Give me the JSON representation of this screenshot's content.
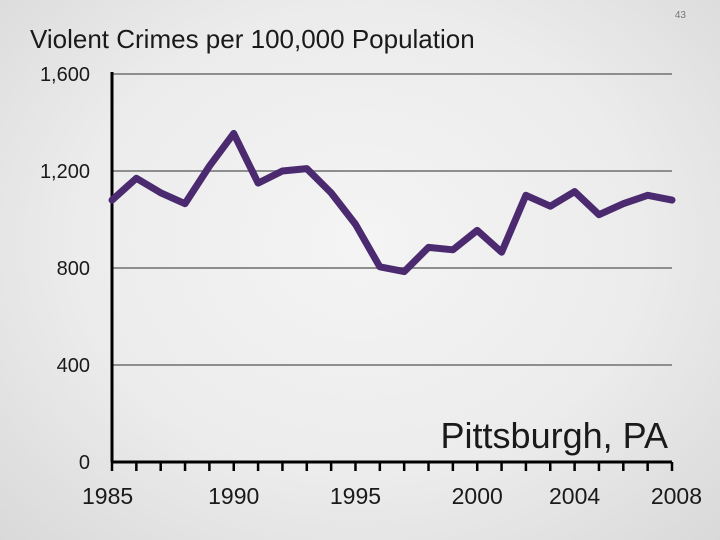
{
  "slide": {
    "number": "43"
  },
  "chart_data": {
    "type": "line",
    "title": "Violent Crimes per 100,000 Population",
    "annotation": "Pittsburgh, PA",
    "xlabel": "",
    "ylabel": "",
    "xlim": [
      1985,
      2008
    ],
    "ylim": [
      0,
      1600
    ],
    "y_ticks": [
      0,
      400,
      800,
      1200,
      1600
    ],
    "y_tick_labels": [
      "0",
      "400",
      "800",
      "1,200",
      "1,600"
    ],
    "x_tick_labels": [
      "1985",
      "1990",
      "1995",
      "2000",
      "2004",
      "2008"
    ],
    "x_tick_values": [
      1985,
      1990,
      1995,
      2000,
      2004,
      2008
    ],
    "grid": true,
    "line_color": "#4b2a6f",
    "x": [
      1985,
      1986,
      1987,
      1988,
      1989,
      1990,
      1991,
      1992,
      1993,
      1994,
      1995,
      1996,
      1997,
      1998,
      1999,
      2000,
      2001,
      2002,
      2003,
      2004,
      2005,
      2006,
      2007,
      2008
    ],
    "values": [
      1080,
      1170,
      1110,
      1065,
      1220,
      1355,
      1150,
      1200,
      1210,
      1110,
      980,
      805,
      785,
      885,
      875,
      955,
      865,
      1100,
      1055,
      1115,
      1020,
      1065,
      1100,
      1080
    ]
  }
}
